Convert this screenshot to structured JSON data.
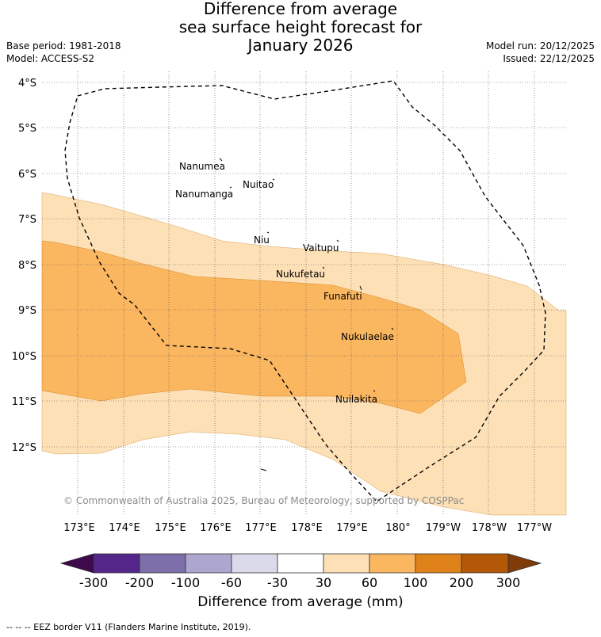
{
  "title": {
    "line1": "Difference from average",
    "line2": "sea surface height forecast for",
    "line3": "January 2026"
  },
  "meta": {
    "base_period": "Base period: 1981-2018",
    "model": "Model: ACCESS-S2",
    "model_run": "Model run: 20/12/2025",
    "issued": "Issued: 22/12/2025"
  },
  "map": {
    "lat_labels": [
      "4°S",
      "5°S",
      "6°S",
      "7°S",
      "8°S",
      "9°S",
      "10°S",
      "11°S",
      "12°S"
    ],
    "lon_labels": [
      "173°E",
      "174°E",
      "175°E",
      "176°E",
      "177°E",
      "178°E",
      "179°E",
      "180°",
      "179°W",
      "178°W",
      "177°W"
    ],
    "islands": [
      {
        "name": "Nanumea"
      },
      {
        "name": "Nanumanga"
      },
      {
        "name": "Nuitao"
      },
      {
        "name": "Niu"
      },
      {
        "name": "Vaitupu"
      },
      {
        "name": "Nukufetau"
      },
      {
        "name": "Funafuti"
      },
      {
        "name": "Nukulaelae"
      },
      {
        "name": "Nuilakita"
      }
    ],
    "copyright": "© Commonwealth of Australia 2025, Bureau of Meteorology, supported by COSPPac",
    "colors": {
      "band_30_60": "#fde0b6",
      "band_60_100": "#fbb660",
      "eez_line": "#000000"
    }
  },
  "colorbar": {
    "ticks": [
      "-300",
      "-200",
      "-100",
      "-60",
      "-30",
      "30",
      "60",
      "100",
      "200",
      "300"
    ],
    "colors": [
      "#3d0a4b",
      "#54268a",
      "#7d6fa9",
      "#ada7cf",
      "#dadaeb",
      "#ffffff",
      "#fde0b6",
      "#fbb660",
      "#e0821a",
      "#b35806",
      "#7f3b08"
    ],
    "label": "Difference from average (mm)"
  },
  "footnote": "-- -- -- EEZ border V11 (Flanders Marine Institute, 2019)."
}
